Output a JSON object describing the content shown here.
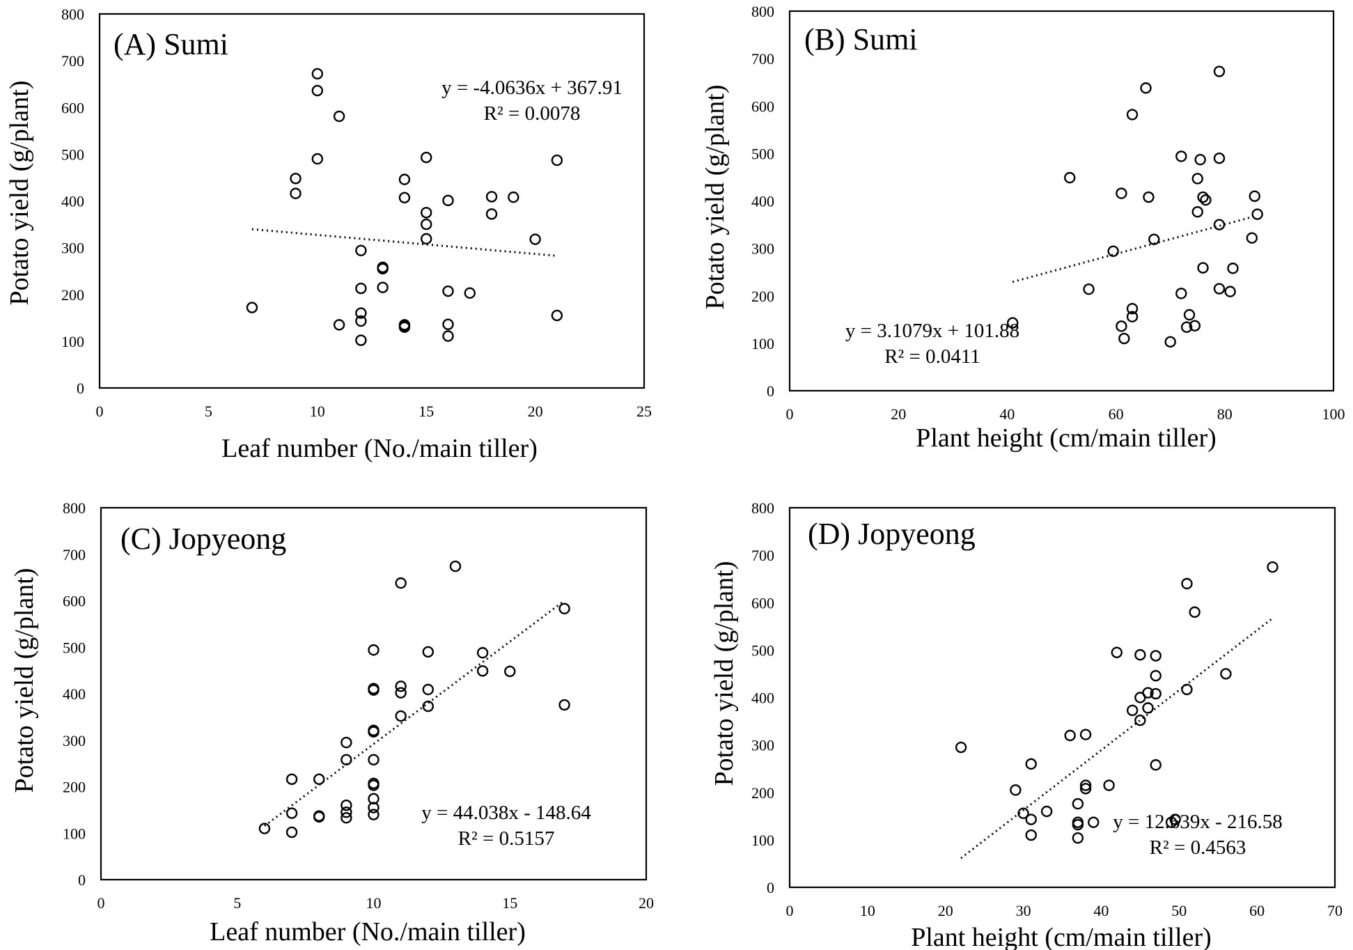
{
  "chart_data": [
    {
      "type": "scatter",
      "panel_label": "(A) Sumi",
      "xlabel": "Leaf number (No./main tiller)",
      "ylabel": "Potato yield (g/plant)",
      "xlim": [
        0,
        25
      ],
      "ylim": [
        0,
        800
      ],
      "xticks": [
        0,
        5,
        10,
        15,
        20,
        25
      ],
      "yticks": [
        0,
        100,
        200,
        300,
        400,
        500,
        600,
        700,
        800
      ],
      "points": [
        [
          7,
          172
        ],
        [
          9,
          448
        ],
        [
          9,
          416
        ],
        [
          10,
          672
        ],
        [
          10,
          636
        ],
        [
          10,
          490
        ],
        [
          11,
          581
        ],
        [
          11,
          135
        ],
        [
          12,
          294
        ],
        [
          12,
          213
        ],
        [
          12,
          160
        ],
        [
          12,
          143
        ],
        [
          12,
          102
        ],
        [
          13,
          258
        ],
        [
          13,
          255
        ],
        [
          13,
          215
        ],
        [
          14,
          446
        ],
        [
          14,
          407
        ],
        [
          14,
          135
        ],
        [
          14,
          132
        ],
        [
          14,
          130
        ],
        [
          15,
          493
        ],
        [
          15,
          375
        ],
        [
          15,
          350
        ],
        [
          15,
          319
        ],
        [
          16,
          401
        ],
        [
          16,
          207
        ],
        [
          16,
          136
        ],
        [
          16,
          111
        ],
        [
          17,
          203
        ],
        [
          18,
          409
        ],
        [
          18,
          372
        ],
        [
          19,
          408
        ],
        [
          20,
          318
        ],
        [
          21,
          487
        ],
        [
          21,
          155
        ]
      ],
      "trendline": {
        "slope": -4.0636,
        "intercept": 367.91,
        "x_range": [
          7,
          21
        ]
      },
      "equation": "y = -4.0636x + 367.91",
      "r_squared": "R² = 0.0078"
    },
    {
      "type": "scatter",
      "panel_label": "(B) Sumi",
      "xlabel": "Plant height (cm/main tiller)",
      "ylabel": "Potato yield (g/plant)",
      "xlim": [
        0,
        100
      ],
      "ylim": [
        0,
        800
      ],
      "xticks": [
        0,
        20,
        40,
        60,
        80,
        100
      ],
      "yticks": [
        0,
        100,
        200,
        300,
        400,
        500,
        600,
        700,
        800
      ],
      "points": [
        [
          41,
          143
        ],
        [
          51.5,
          449
        ],
        [
          55,
          214
        ],
        [
          59.5,
          294
        ],
        [
          61,
          416
        ],
        [
          61,
          136
        ],
        [
          61.5,
          110
        ],
        [
          63,
          582
        ],
        [
          63,
          173
        ],
        [
          63,
          156
        ],
        [
          65.5,
          638
        ],
        [
          66,
          408
        ],
        [
          67,
          319
        ],
        [
          70,
          103
        ],
        [
          72,
          494
        ],
        [
          72,
          205
        ],
        [
          73,
          134
        ],
        [
          73.5,
          160
        ],
        [
          74.5,
          137
        ],
        [
          75,
          447
        ],
        [
          75,
          377
        ],
        [
          75.5,
          487
        ],
        [
          76,
          408
        ],
        [
          76,
          259
        ],
        [
          76.5,
          402
        ],
        [
          79,
          673
        ],
        [
          79,
          490
        ],
        [
          79,
          350
        ],
        [
          79,
          215
        ],
        [
          81,
          209
        ],
        [
          81.5,
          258
        ],
        [
          85,
          322
        ],
        [
          85.5,
          410
        ],
        [
          86,
          372
        ]
      ],
      "trendline": {
        "slope": 3.1079,
        "intercept": 101.88,
        "x_range": [
          41,
          86
        ]
      },
      "equation": "y = 3.1079x + 101.88",
      "r_squared": "R² = 0.0411"
    },
    {
      "type": "scatter",
      "panel_label": "(C) Jopyeong",
      "xlabel": "Leaf number (No./main tiller)",
      "ylabel": "Potato yield (g/plant)",
      "xlim": [
        0,
        20
      ],
      "ylim": [
        0,
        800
      ],
      "xticks": [
        0,
        5,
        10,
        15,
        20
      ],
      "yticks": [
        0,
        100,
        200,
        300,
        400,
        500,
        600,
        700,
        800
      ],
      "points": [
        [
          6,
          110
        ],
        [
          7,
          216
        ],
        [
          7,
          143
        ],
        [
          7,
          102
        ],
        [
          8,
          216
        ],
        [
          8,
          137
        ],
        [
          8,
          135
        ],
        [
          9,
          295
        ],
        [
          9,
          258
        ],
        [
          9,
          160
        ],
        [
          9,
          145
        ],
        [
          9,
          133
        ],
        [
          10,
          494
        ],
        [
          10,
          411
        ],
        [
          10,
          408
        ],
        [
          10,
          321
        ],
        [
          10,
          318
        ],
        [
          10,
          258
        ],
        [
          10,
          207
        ],
        [
          10,
          203
        ],
        [
          10,
          174
        ],
        [
          10,
          155
        ],
        [
          10,
          140
        ],
        [
          11,
          638
        ],
        [
          11,
          416
        ],
        [
          11,
          402
        ],
        [
          11,
          352
        ],
        [
          12,
          490
        ],
        [
          12,
          409
        ],
        [
          12,
          373
        ],
        [
          13,
          674
        ],
        [
          14,
          488
        ],
        [
          14,
          449
        ],
        [
          15,
          448
        ],
        [
          17,
          583
        ],
        [
          17,
          376
        ]
      ],
      "trendline": {
        "slope": 44.038,
        "intercept": -148.64,
        "x_range": [
          6,
          17
        ]
      },
      "equation": "y = 44.038x - 148.64",
      "r_squared": "R² = 0.5157"
    },
    {
      "type": "scatter",
      "panel_label": "(D) Jopyeong",
      "xlabel": "Plant height (cm/main tiller)",
      "ylabel": "Potato yield (g/plant)",
      "xlim": [
        0,
        70
      ],
      "ylim": [
        0,
        800
      ],
      "xticks": [
        0,
        10,
        20,
        30,
        40,
        50,
        60,
        70
      ],
      "yticks": [
        0,
        100,
        200,
        300,
        400,
        500,
        600,
        700,
        800
      ],
      "points": [
        [
          22,
          295
        ],
        [
          29,
          205
        ],
        [
          30,
          156
        ],
        [
          31,
          260
        ],
        [
          31,
          143
        ],
        [
          31,
          110
        ],
        [
          33,
          160
        ],
        [
          36,
          320
        ],
        [
          37,
          176
        ],
        [
          37,
          137
        ],
        [
          37,
          132
        ],
        [
          37,
          104
        ],
        [
          38,
          322
        ],
        [
          38,
          215
        ],
        [
          38,
          208
        ],
        [
          39,
          137
        ],
        [
          41,
          215
        ],
        [
          42,
          495
        ],
        [
          44,
          373
        ],
        [
          45,
          490
        ],
        [
          45,
          400
        ],
        [
          45,
          352
        ],
        [
          46,
          410
        ],
        [
          46,
          378
        ],
        [
          47,
          488
        ],
        [
          47,
          446
        ],
        [
          47,
          408
        ],
        [
          47,
          258
        ],
        [
          49,
          137
        ],
        [
          49.5,
          143
        ],
        [
          51,
          640
        ],
        [
          51,
          417
        ],
        [
          52,
          580
        ],
        [
          56,
          450
        ],
        [
          62,
          675
        ]
      ],
      "trendline": {
        "slope": 12.639,
        "intercept": -216.58,
        "x_range": [
          22,
          62
        ]
      },
      "equation": "y = 12.639x - 216.58",
      "r_squared": "R² = 0.4563"
    }
  ]
}
